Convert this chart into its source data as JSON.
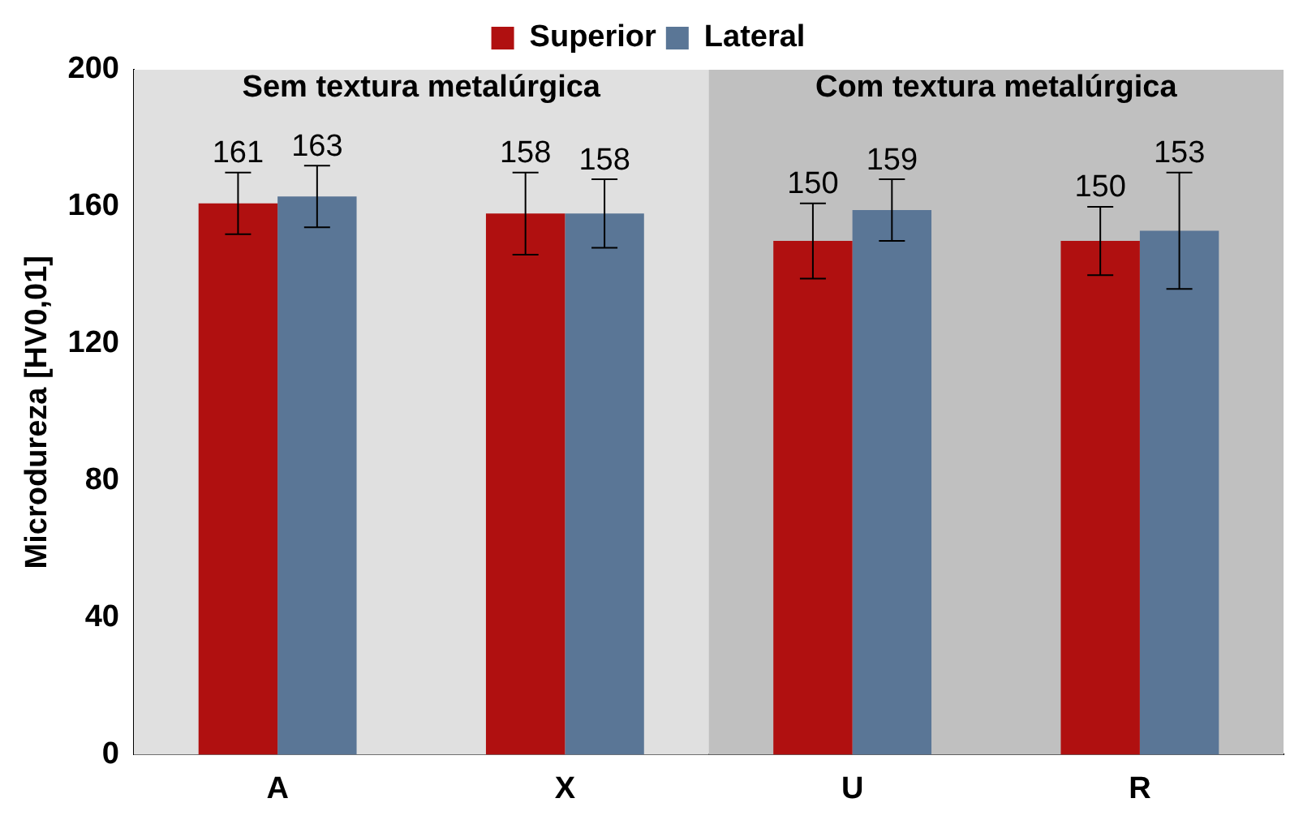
{
  "chart_data": {
    "type": "bar",
    "ylabel": "Microdureza [HV0,01]",
    "categories": [
      "A",
      "X",
      "U",
      "R"
    ],
    "series": [
      {
        "name": "Superior",
        "color": "#b01010",
        "values": [
          161,
          158,
          150,
          150
        ],
        "errors": [
          9,
          12,
          11,
          10
        ]
      },
      {
        "name": "Lateral",
        "color": "#5a7696",
        "values": [
          163,
          158,
          159,
          153
        ],
        "errors": [
          9,
          10,
          9,
          17
        ]
      }
    ],
    "ylim": [
      0,
      200
    ],
    "yticks": [
      0,
      40,
      80,
      120,
      160,
      200
    ],
    "grid": false,
    "legend": "top",
    "data_labels": true,
    "bands": [
      {
        "axis": "x",
        "from": "A",
        "to": "X",
        "label": "Sem textura metalúrgica",
        "color": "#e0e0e0"
      },
      {
        "axis": "x",
        "from": "U",
        "to": "R",
        "label": "Com textura metalúrgica",
        "color": "#c0c0c0"
      }
    ]
  }
}
